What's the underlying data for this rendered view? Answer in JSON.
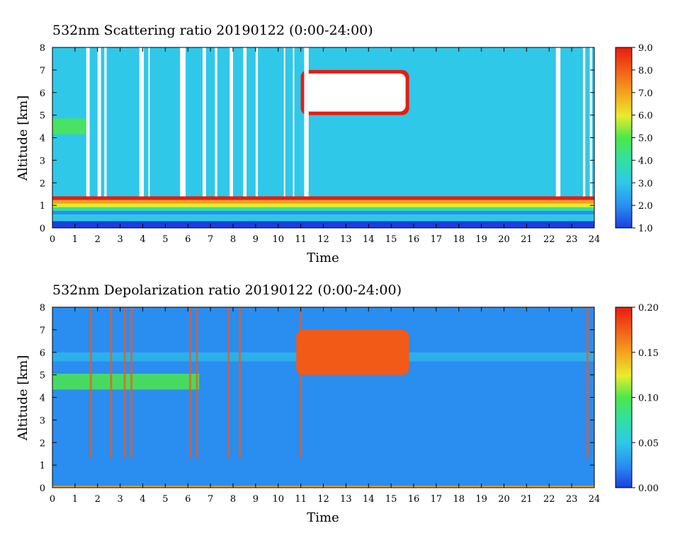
{
  "chart_data": [
    {
      "type": "heatmap",
      "title": "532nm Scattering ratio  20190122 (0:00-24:00)",
      "xlabel": "Time",
      "ylabel": "Altitude [km]",
      "xlim": [
        0,
        24
      ],
      "ylim": [
        0,
        8
      ],
      "x_ticks": [
        "0",
        "1",
        "2",
        "3",
        "4",
        "5",
        "6",
        "7",
        "8",
        "9",
        "10",
        "11",
        "12",
        "13",
        "14",
        "15",
        "16",
        "17",
        "18",
        "19",
        "20",
        "21",
        "22",
        "23",
        "24"
      ],
      "y_ticks": [
        "0",
        "1",
        "2",
        "3",
        "4",
        "5",
        "6",
        "7",
        "8"
      ],
      "colorbar": {
        "range": [
          1.0,
          9.0
        ],
        "ticks": [
          "1.0",
          "2.0",
          "3.0",
          "4.0",
          "5.0",
          "6.0",
          "7.0",
          "8.0",
          "9.0"
        ],
        "colors": [
          "#1c3fe0",
          "#2a8df0",
          "#2fc8e8",
          "#33e0a0",
          "#4ce84a",
          "#e8ec2c",
          "#f4a21e",
          "#f25a18",
          "#e81c10"
        ]
      },
      "features": {
        "background_value": 2.8,
        "boundary_layer": {
          "base_km": 0.6,
          "top_km": 1.4,
          "peak_value": 9.0
        },
        "cloud": {
          "time_start_h": 11.0,
          "time_end_h": 15.8,
          "alt_min_km": 5.0,
          "alt_max_km": 7.0,
          "value": 9.0
        },
        "elevated_layer": {
          "time_start_h": 0,
          "time_end_h": 1.5,
          "alt_km": 4.5,
          "value": 4.5
        },
        "missing_data_columns_h": [
          [
            1.5,
            1.65
          ],
          [
            2.0,
            2.15
          ],
          [
            2.3,
            2.4
          ],
          [
            3.85,
            4.05
          ],
          [
            4.25,
            4.3
          ],
          [
            5.65,
            5.9
          ],
          [
            6.65,
            6.8
          ],
          [
            7.2,
            7.3
          ],
          [
            7.85,
            8.0
          ],
          [
            8.45,
            8.6
          ],
          [
            9.0,
            9.1
          ],
          [
            10.25,
            10.3
          ],
          [
            10.65,
            10.7
          ],
          [
            11.15,
            11.35
          ],
          [
            22.3,
            22.5
          ],
          [
            23.5,
            23.6
          ],
          [
            23.8,
            23.9
          ]
        ]
      }
    },
    {
      "type": "heatmap",
      "title": "532nm Depolarization ratio  20190122 (0:00-24:00)",
      "xlabel": "Time",
      "ylabel": "Altitude [km]",
      "xlim": [
        0,
        24
      ],
      "ylim": [
        0,
        8
      ],
      "x_ticks": [
        "0",
        "1",
        "2",
        "3",
        "4",
        "5",
        "6",
        "7",
        "8",
        "9",
        "10",
        "11",
        "12",
        "13",
        "14",
        "15",
        "16",
        "17",
        "18",
        "19",
        "20",
        "21",
        "22",
        "23",
        "24"
      ],
      "y_ticks": [
        "0",
        "1",
        "2",
        "3",
        "4",
        "5",
        "6",
        "7",
        "8"
      ],
      "colorbar": {
        "range": [
          0.0,
          0.2
        ],
        "ticks": [
          "0.00",
          "0.05",
          "0.10",
          "0.15",
          "0.20"
        ],
        "colors": [
          "#1c3fe0",
          "#2a8df0",
          "#2fc8e8",
          "#33e0a0",
          "#4ce84a",
          "#e8ec2c",
          "#f4a21e",
          "#f25a18",
          "#e81c10"
        ]
      },
      "features": {
        "background_value": 0.03,
        "elevated_layer": {
          "time_start_h": 0,
          "time_end_h": 6.5,
          "alt_km": 4.7,
          "value": 0.09
        },
        "upper_band": {
          "alt_km": 5.8,
          "value": 0.05
        },
        "cloud": {
          "time_start_h": 10.8,
          "time_end_h": 15.8,
          "alt_min_km": 5.0,
          "alt_max_km": 7.0,
          "value": 0.18
        },
        "streaks_h": [
          1.7,
          2.6,
          3.2,
          3.5,
          6.1,
          6.4,
          7.8,
          8.3,
          11.0,
          23.7
        ]
      }
    }
  ]
}
